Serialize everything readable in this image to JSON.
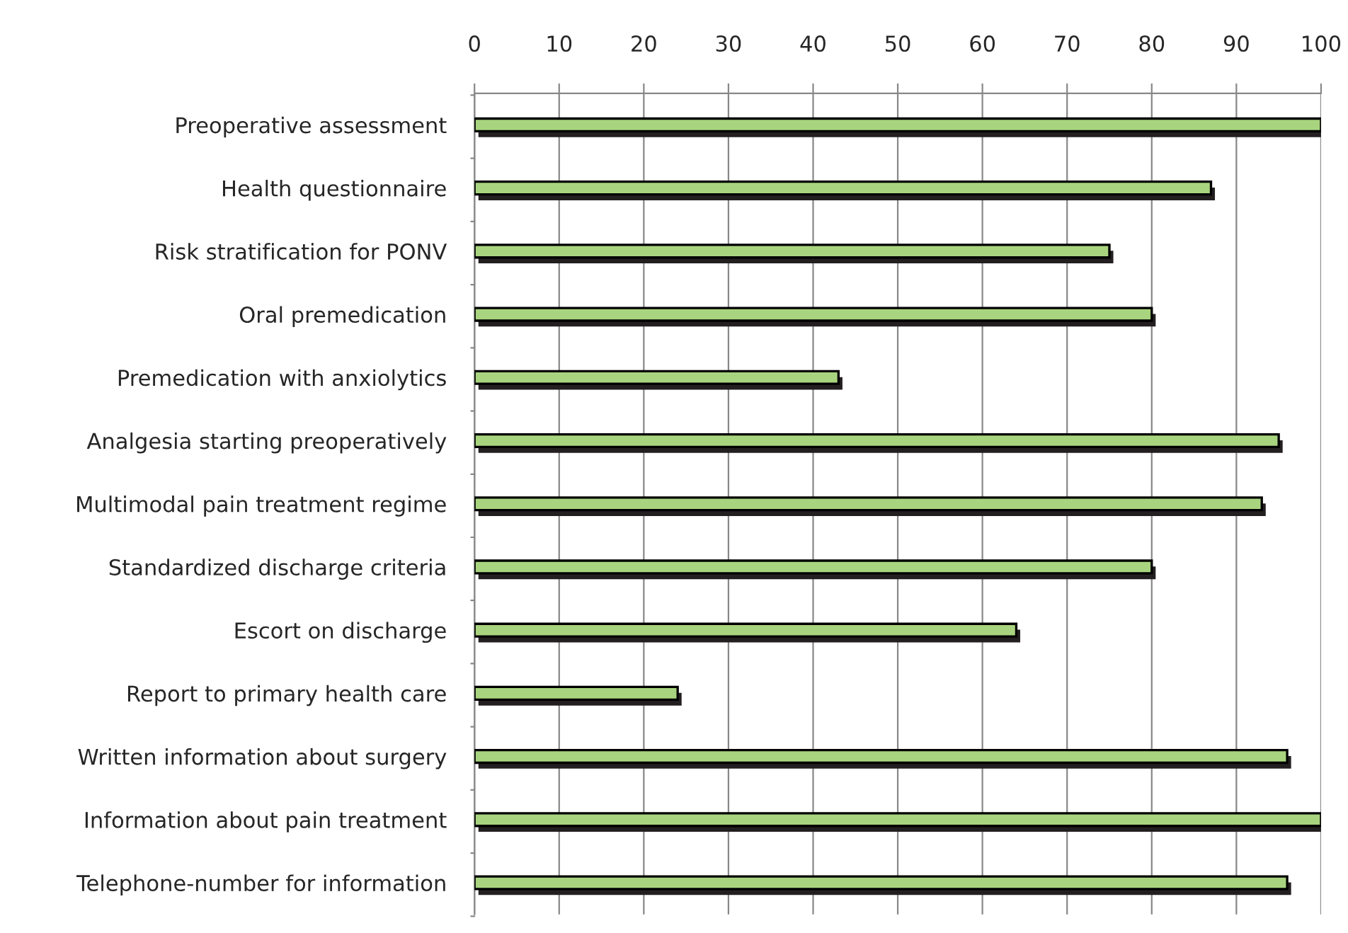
{
  "chart_data": {
    "type": "bar",
    "orientation": "horizontal",
    "categories": [
      "Preoperative assessment",
      "Health questionnaire",
      "Risk stratification for PONV",
      "Oral premedication",
      "Premedication with anxiolytics",
      "Analgesia starting preoperatively",
      "Multimodal pain treatment regime",
      "Standardized discharge criteria",
      "Escort on discharge",
      "Report to primary health care",
      "Written information about surgery",
      "Information about pain treatment",
      "Telephone-number for information"
    ],
    "values": [
      100,
      87,
      75,
      80,
      43,
      95,
      93,
      80,
      64,
      24,
      96,
      100,
      96
    ],
    "color": "#a9d47f",
    "xlim": [
      0,
      100
    ],
    "xticks": [
      0,
      10,
      20,
      30,
      40,
      50,
      60,
      70,
      80,
      90,
      100
    ],
    "grid": "x",
    "legend": false
  }
}
